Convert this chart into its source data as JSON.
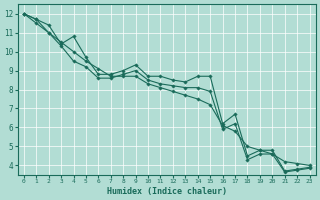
{
  "xlabel": "Humidex (Indice chaleur)",
  "xlim": [
    -0.5,
    23.5
  ],
  "ylim": [
    3.5,
    12.5
  ],
  "xticks": [
    0,
    1,
    2,
    3,
    4,
    5,
    6,
    7,
    8,
    9,
    10,
    11,
    12,
    13,
    14,
    15,
    16,
    17,
    18,
    19,
    20,
    21,
    22,
    23
  ],
  "yticks": [
    4,
    5,
    6,
    7,
    8,
    9,
    10,
    11,
    12
  ],
  "background_color": "#b2ddd4",
  "grid_color": "#ffffff",
  "line_color": "#1a6b5a",
  "line1_x": [
    0,
    1,
    2,
    3,
    4,
    5,
    6,
    7,
    8,
    9,
    10,
    11,
    12,
    13,
    14,
    15,
    16,
    17,
    18,
    19,
    20,
    21,
    22,
    23
  ],
  "line1_y": [
    12.0,
    11.7,
    11.4,
    10.4,
    10.8,
    9.7,
    8.8,
    8.8,
    9.0,
    9.3,
    8.7,
    8.7,
    8.5,
    8.4,
    8.7,
    8.7,
    6.2,
    6.7,
    4.5,
    4.8,
    4.8,
    3.7,
    3.8,
    3.9
  ],
  "line2_x": [
    0,
    1,
    2,
    3,
    4,
    5,
    6,
    7,
    8,
    9,
    10,
    11,
    12,
    13,
    14,
    15,
    16,
    17,
    18,
    19,
    20,
    21,
    22,
    23
  ],
  "line2_y": [
    12.0,
    11.5,
    11.0,
    10.5,
    10.0,
    9.5,
    9.1,
    8.7,
    8.7,
    8.7,
    8.3,
    8.1,
    7.9,
    7.7,
    7.5,
    7.2,
    6.1,
    5.8,
    5.0,
    4.8,
    4.6,
    4.2,
    4.1,
    4.0
  ],
  "line3_x": [
    0,
    1,
    2,
    3,
    4,
    5,
    6,
    7,
    8,
    9,
    10,
    11,
    12,
    13,
    14,
    15,
    16,
    17,
    18,
    19,
    20,
    21,
    22,
    23
  ],
  "line3_y": [
    12.0,
    11.7,
    11.0,
    10.3,
    9.5,
    9.2,
    8.6,
    8.6,
    8.8,
    9.0,
    8.5,
    8.3,
    8.2,
    8.1,
    8.1,
    7.9,
    5.9,
    6.2,
    4.3,
    4.6,
    4.6,
    3.65,
    3.75,
    3.85
  ]
}
